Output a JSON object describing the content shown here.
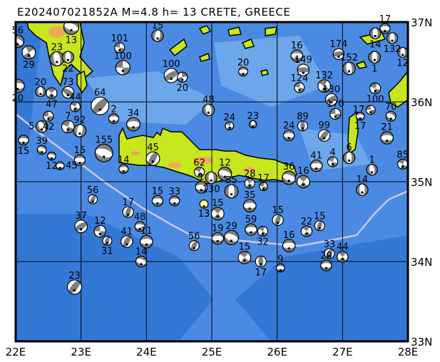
{
  "title": "E202407021852A M=4.8 h= 13 CRETE, GREECE",
  "map": {
    "lon_range": [
      22,
      28
    ],
    "lat_range": [
      33,
      37
    ],
    "x_ticks": [
      "22E",
      "23E",
      "24E",
      "25E",
      "26E",
      "27E",
      "28E"
    ],
    "y_ticks": [
      "37N",
      "36N",
      "35N",
      "34N",
      "33N"
    ],
    "grid": true,
    "colors": {
      "ocean_deep": "#2e72d2",
      "ocean_mid": "#4a8ae2",
      "ocean_shallow": "#78b0ee",
      "land": "#c8e61e",
      "land_high": "#f0a85a",
      "trench": "#cfc8f2",
      "compressional": "#808080",
      "highlight": "#ffff00"
    }
  },
  "events": [
    {
      "lon": 22.03,
      "lat": 36.76,
      "depth": "56",
      "mag": 5.3,
      "mech": "thrust",
      "strike": 30
    },
    {
      "lon": 22.2,
      "lat": 36.62,
      "depth": "29",
      "mag": 5.4,
      "mech": "strike",
      "strike": 60
    },
    {
      "lon": 22.85,
      "lat": 36.94,
      "depth": "13",
      "mag": 5.6,
      "mech": "thrust",
      "strike": 20
    },
    {
      "lon": 22.63,
      "lat": 36.54,
      "depth": "23",
      "mag": 5.5,
      "mech": "thrust",
      "strike": 80
    },
    {
      "lon": 22.8,
      "lat": 36.56,
      "depth": "22",
      "mag": 5.2,
      "mech": "thrust",
      "strike": 90
    },
    {
      "lon": 22.03,
      "lat": 36.2,
      "depth": "20",
      "mag": 5.4,
      "mech": "thrust",
      "strike": 0
    },
    {
      "lon": 22.38,
      "lat": 36.13,
      "depth": "20",
      "mag": 5.0,
      "mech": "thrust",
      "strike": 90
    },
    {
      "lon": 22.55,
      "lat": 36.11,
      "depth": "47",
      "mag": 5.1,
      "mech": "strike",
      "strike": 45
    },
    {
      "lon": 22.8,
      "lat": 36.12,
      "depth": "73",
      "mag": 5.2,
      "mech": "normal",
      "strike": 120
    },
    {
      "lon": 22.91,
      "lat": 35.94,
      "depth": "44",
      "mag": 5.0,
      "mech": "strike",
      "strike": 30
    },
    {
      "lon": 22.5,
      "lat": 35.82,
      "depth": "42",
      "mag": 5.0,
      "mech": "strike",
      "strike": 0
    },
    {
      "lon": 22.4,
      "lat": 35.69,
      "depth": "5",
      "mag": 5.2,
      "mech": "thrust",
      "strike": 60
    },
    {
      "lon": 22.8,
      "lat": 35.69,
      "depth": "7",
      "mag": 5.3,
      "mech": "strike",
      "strike": 20
    },
    {
      "lon": 22.98,
      "lat": 35.64,
      "depth": "92",
      "mag": 5.3,
      "mech": "thrust",
      "strike": 100
    },
    {
      "lon": 22.12,
      "lat": 35.52,
      "depth": "15",
      "mag": 5.0,
      "mech": "thrust",
      "strike": 0
    },
    {
      "lon": 22.4,
      "lat": 35.4,
      "depth": "39",
      "mag": 4.9,
      "mech": "thrust",
      "strike": 20
    },
    {
      "lon": 22.55,
      "lat": 35.32,
      "depth": "12",
      "mag": 4.8,
      "mech": "thrust",
      "strike": 10
    },
    {
      "lon": 22.68,
      "lat": 35.2,
      "depth": "45",
      "mag": 4.8,
      "mech": "thrust",
      "strike": 0
    },
    {
      "lon": 23.29,
      "lat": 35.95,
      "depth": "64",
      "mag": 5.9,
      "mech": "normal",
      "strike": 45
    },
    {
      "lon": 23.5,
      "lat": 35.79,
      "depth": "2",
      "mag": 5.0,
      "mech": "thrust",
      "strike": 0
    },
    {
      "lon": 23.8,
      "lat": 35.72,
      "depth": "34",
      "mag": 5.4,
      "mech": "thrust",
      "strike": 0
    },
    {
      "lon": 22.98,
      "lat": 35.27,
      "depth": "15",
      "mag": 5.1,
      "mech": "thrust",
      "strike": 0
    },
    {
      "lon": 23.35,
      "lat": 35.36,
      "depth": "155",
      "mag": 5.9,
      "mech": "thrust",
      "strike": 15
    },
    {
      "lon": 23.65,
      "lat": 35.16,
      "depth": "14",
      "mag": 4.9,
      "mech": "thrust",
      "strike": 0
    },
    {
      "lon": 24.1,
      "lat": 35.29,
      "depth": "45",
      "mag": 5.4,
      "mech": "normal",
      "strike": 30
    },
    {
      "lon": 23.59,
      "lat": 36.68,
      "depth": "101",
      "mag": 5.0,
      "mech": "strike",
      "strike": 10
    },
    {
      "lon": 23.64,
      "lat": 36.43,
      "depth": "100",
      "mag": 5.5,
      "mech": "strike",
      "strike": 0
    },
    {
      "lon": 24.17,
      "lat": 36.83,
      "depth": "15",
      "mag": 5.2,
      "mech": "thrust",
      "strike": 100
    },
    {
      "lon": 24.38,
      "lat": 36.33,
      "depth": "100",
      "mag": 5.5,
      "mech": "normal",
      "strike": 60
    },
    {
      "lon": 24.55,
      "lat": 36.31,
      "depth": "20",
      "mag": 5.0,
      "mech": "strike",
      "strike": 80
    },
    {
      "lon": 24.95,
      "lat": 35.9,
      "depth": "48",
      "mag": 5.2,
      "mech": "thrust",
      "strike": 80
    },
    {
      "lon": 25.27,
      "lat": 35.7,
      "depth": "24",
      "mag": 4.8,
      "mech": "strike",
      "strike": 30
    },
    {
      "lon": 25.63,
      "lat": 35.72,
      "depth": "23",
      "mag": 4.7,
      "mech": "thrust",
      "strike": 90
    },
    {
      "lon": 25.48,
      "lat": 36.38,
      "depth": "20",
      "mag": 4.9,
      "mech": "thrust",
      "strike": 0
    },
    {
      "lon": 26.3,
      "lat": 36.58,
      "depth": "16",
      "mag": 5.2,
      "mech": "thrust",
      "strike": 0
    },
    {
      "lon": 26.4,
      "lat": 36.4,
      "depth": "149",
      "mag": 5.2,
      "mech": "normal",
      "strike": 90
    },
    {
      "lon": 26.94,
      "lat": 36.6,
      "depth": "174",
      "mag": 5.1,
      "mech": "normal",
      "strike": 80
    },
    {
      "lon": 26.34,
      "lat": 36.18,
      "depth": "124",
      "mag": 5.0,
      "mech": "strike",
      "strike": 10
    },
    {
      "lon": 27.65,
      "lat": 36.92,
      "depth": "17",
      "mag": 5.0,
      "mech": "thrust",
      "strike": 0
    },
    {
      "lon": 27.76,
      "lat": 36.8,
      "depth": "132",
      "mag": 5.1,
      "mech": "thrust",
      "strike": 90
    },
    {
      "lon": 27.5,
      "lat": 36.86,
      "depth": "14",
      "mag": 5.1,
      "mech": "thrust",
      "strike": 90
    },
    {
      "lon": 27.92,
      "lat": 36.62,
      "depth": "12",
      "mag": 5.0,
      "mech": "thrust",
      "strike": 90
    },
    {
      "lon": 27.49,
      "lat": 36.56,
      "depth": "1",
      "mag": 5.2,
      "mech": "thrust",
      "strike": 90
    },
    {
      "lon": 27.1,
      "lat": 36.42,
      "depth": "152",
      "mag": 5.3,
      "mech": "thrust",
      "strike": 80
    },
    {
      "lon": 26.72,
      "lat": 36.2,
      "depth": "132",
      "mag": 5.3,
      "mech": "strike",
      "strike": 30
    },
    {
      "lon": 26.83,
      "lat": 36.03,
      "depth": "130",
      "mag": 5.2,
      "mech": "normal",
      "strike": 60
    },
    {
      "lon": 27.5,
      "lat": 36.17,
      "depth": "100",
      "mag": 5.1,
      "mech": "strike",
      "strike": 20
    },
    {
      "lon": 26.89,
      "lat": 35.85,
      "depth": "170",
      "mag": 5.1,
      "mech": "strike",
      "strike": 0
    },
    {
      "lon": 27.27,
      "lat": 35.82,
      "depth": "17",
      "mag": 4.8,
      "mech": "thrust",
      "strike": 0
    },
    {
      "lon": 27.43,
      "lat": 35.9,
      "depth": "17",
      "mag": 4.9,
      "mech": "strike",
      "strike": 0
    },
    {
      "lon": 27.74,
      "lat": 35.82,
      "depth": "70",
      "mag": 5.0,
      "mech": "thrust",
      "strike": 30
    },
    {
      "lon": 26.39,
      "lat": 35.7,
      "depth": "89",
      "mag": 5.0,
      "mech": "normal",
      "strike": 0
    },
    {
      "lon": 26.18,
      "lat": 35.58,
      "depth": "24",
      "mag": 5.1,
      "mech": "thrust",
      "strike": 0
    },
    {
      "lon": 26.72,
      "lat": 35.58,
      "depth": "99",
      "mag": 5.2,
      "mech": "normal",
      "strike": 40
    },
    {
      "lon": 27.68,
      "lat": 35.55,
      "depth": "21",
      "mag": 5.3,
      "mech": "thrust",
      "strike": 0
    },
    {
      "lon": 27.92,
      "lat": 35.22,
      "depth": "85",
      "mag": 5.0,
      "mech": "strike",
      "strike": 30
    },
    {
      "lon": 26.18,
      "lat": 35.05,
      "depth": "36",
      "mag": 5.4,
      "mech": "thrust",
      "strike": 20
    },
    {
      "lon": 26.4,
      "lat": 35.0,
      "depth": "16",
      "mag": 5.3,
      "mech": "strike",
      "strike": 45
    },
    {
      "lon": 26.6,
      "lat": 35.2,
      "depth": "41",
      "mag": 5.2,
      "mech": "thrust",
      "strike": 0
    },
    {
      "lon": 26.85,
      "lat": 35.25,
      "depth": "4",
      "mag": 5.0,
      "mech": "strike",
      "strike": 20
    },
    {
      "lon": 27.1,
      "lat": 35.3,
      "depth": "6",
      "mag": 5.2,
      "mech": "thrust",
      "strike": 90
    },
    {
      "lon": 27.45,
      "lat": 35.15,
      "depth": "1",
      "mag": 5.1,
      "mech": "thrust",
      "strike": 80
    },
    {
      "lon": 27.3,
      "lat": 34.9,
      "depth": "14",
      "mag": 5.2,
      "mech": "thrust",
      "strike": 90
    },
    {
      "lon": 24.81,
      "lat": 35.12,
      "depth": "62",
      "mag": 5.0,
      "mech": "strike",
      "strike": 30
    },
    {
      "lon": 25.2,
      "lat": 35.1,
      "depth": "12",
      "mag": 5.4,
      "mech": "thrust",
      "strike": 20
    },
    {
      "lon": 24.99,
      "lat": 35.05,
      "depth": "130",
      "mag": 5.2,
      "mech": "thrust",
      "strike": 90
    },
    {
      "lon": 24.84,
      "lat": 34.93,
      "depth": "1",
      "mag": 5.2,
      "mech": "thrust",
      "strike": 0
    },
    {
      "lon": 25.3,
      "lat": 34.88,
      "depth": "55",
      "mag": 5.4,
      "mech": "thrust",
      "strike": 90
    },
    {
      "lon": 25.58,
      "lat": 34.98,
      "depth": "28",
      "mag": 5.0,
      "mech": "strike",
      "strike": 45
    },
    {
      "lon": 25.79,
      "lat": 34.94,
      "depth": "17",
      "mag": 4.8,
      "mech": "strike",
      "strike": 10
    },
    {
      "lon": 25.58,
      "lat": 34.7,
      "depth": "35",
      "mag": 5.3,
      "mech": "thrust",
      "strike": 0
    },
    {
      "lon": 24.43,
      "lat": 34.76,
      "depth": "33",
      "mag": 5.0,
      "mech": "thrust",
      "strike": 0
    },
    {
      "lon": 24.17,
      "lat": 34.76,
      "depth": "15",
      "mag": 5.1,
      "mech": "thrust",
      "strike": 0
    },
    {
      "lon": 25.09,
      "lat": 34.6,
      "depth": "15",
      "mag": 5.3,
      "mech": "strike",
      "strike": 45
    },
    {
      "lon": 24.73,
      "lat": 34.2,
      "depth": "56",
      "mag": 5.0,
      "mech": "normal",
      "strike": 30
    },
    {
      "lon": 25.09,
      "lat": 34.29,
      "depth": "19",
      "mag": 5.2,
      "mech": "thrust",
      "strike": 0
    },
    {
      "lon": 25.3,
      "lat": 34.3,
      "depth": "29",
      "mag": 5.5,
      "mech": "thrust",
      "strike": 20
    },
    {
      "lon": 25.6,
      "lat": 34.4,
      "depth": "59",
      "mag": 5.2,
      "mech": "thrust",
      "strike": 0
    },
    {
      "lon": 25.78,
      "lat": 34.38,
      "depth": "32",
      "mag": 5.0,
      "mech": "strike",
      "strike": 30
    },
    {
      "lon": 26.01,
      "lat": 34.52,
      "depth": "15",
      "mag": 5.1,
      "mech": "normal",
      "strike": 20
    },
    {
      "lon": 26.18,
      "lat": 34.2,
      "depth": "16",
      "mag": 5.3,
      "mech": "thrust",
      "strike": 0
    },
    {
      "lon": 26.45,
      "lat": 34.38,
      "depth": "22",
      "mag": 5.1,
      "mech": "strike",
      "strike": 40
    },
    {
      "lon": 26.65,
      "lat": 34.45,
      "depth": "15",
      "mag": 5.0,
      "mech": "normal",
      "strike": 20
    },
    {
      "lon": 25.5,
      "lat": 34.05,
      "depth": "15",
      "mag": 5.3,
      "mech": "strike",
      "strike": 40
    },
    {
      "lon": 25.75,
      "lat": 34.0,
      "depth": "17",
      "mag": 5.1,
      "mech": "normal",
      "strike": 0
    },
    {
      "lon": 26.05,
      "lat": 33.92,
      "depth": "9",
      "mag": 4.8,
      "mech": "thrust",
      "strike": 0
    },
    {
      "lon": 26.8,
      "lat": 34.1,
      "depth": "33",
      "mag": 5.0,
      "mech": "normal",
      "strike": 30
    },
    {
      "lon": 26.75,
      "lat": 33.95,
      "depth": "20",
      "mag": 5.1,
      "mech": "thrust",
      "strike": 0
    },
    {
      "lon": 27.0,
      "lat": 34.06,
      "depth": "44",
      "mag": 5.1,
      "mech": "strike",
      "strike": 45
    },
    {
      "lon": 23.18,
      "lat": 34.78,
      "depth": "56",
      "mag": 4.9,
      "mech": "normal",
      "strike": 30
    },
    {
      "lon": 23.0,
      "lat": 34.44,
      "depth": "37",
      "mag": 5.3,
      "mech": "normal",
      "strike": 60
    },
    {
      "lon": 23.29,
      "lat": 34.38,
      "depth": "12",
      "mag": 5.2,
      "mech": "strike",
      "strike": 0
    },
    {
      "lon": 23.4,
      "lat": 34.26,
      "depth": "31",
      "mag": 4.9,
      "mech": "normal",
      "strike": 20
    },
    {
      "lon": 23.72,
      "lat": 34.62,
      "depth": "17",
      "mag": 5.1,
      "mech": "normal",
      "strike": 20
    },
    {
      "lon": 23.9,
      "lat": 34.44,
      "depth": "48",
      "mag": 5.0,
      "mech": "thrust",
      "strike": 0
    },
    {
      "lon": 23.7,
      "lat": 34.25,
      "depth": "41",
      "mag": 5.2,
      "mech": "normal",
      "strike": 30
    },
    {
      "lon": 24.0,
      "lat": 34.25,
      "depth": "11",
      "mag": 5.3,
      "mech": "thrust",
      "strike": 0
    },
    {
      "lon": 23.92,
      "lat": 34.0,
      "depth": "14",
      "mag": 5.1,
      "mech": "thrust",
      "strike": 20
    },
    {
      "lon": 22.9,
      "lat": 33.68,
      "depth": "23",
      "mag": 5.5,
      "mech": "normal",
      "strike": 40
    },
    {
      "lon": 24.88,
      "lat": 34.72,
      "depth": "13",
      "mag": 4.8,
      "mech": "thrust",
      "strike": 0,
      "highlight": true
    }
  ]
}
